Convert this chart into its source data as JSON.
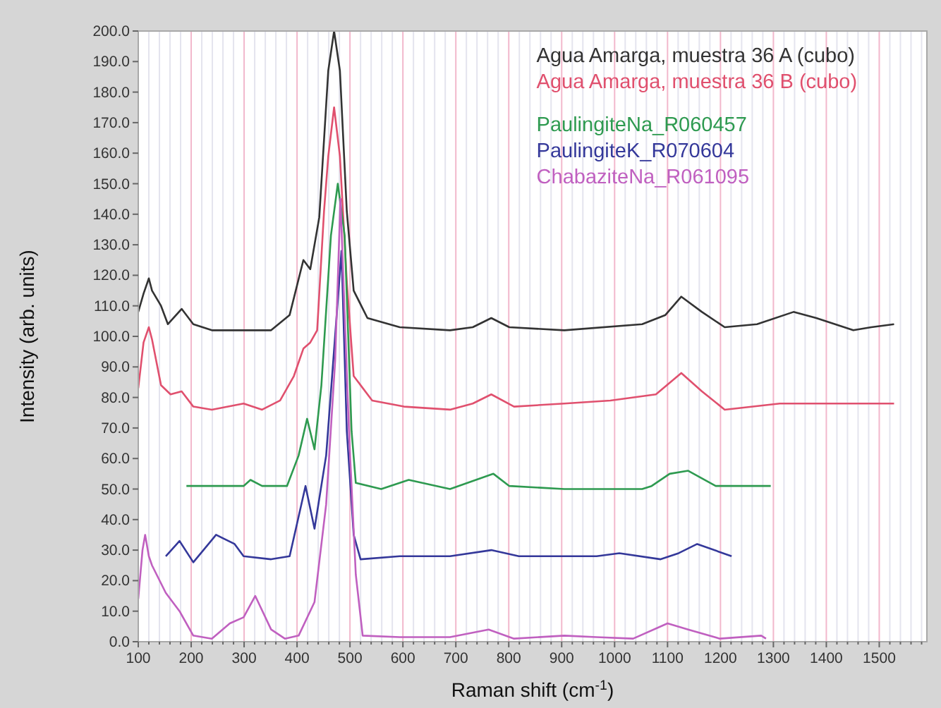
{
  "chart_data": {
    "type": "line",
    "xlabel": "Raman shift (cm$^{-1}$)",
    "ylabel": "Intensity (arb. units)",
    "xlim": [
      100,
      1590
    ],
    "ylim": [
      0,
      200
    ],
    "xticks": [
      100,
      {
        "value": 120,
        "label": null
      },
      {
        "value": 140,
        "label": null
      },
      {
        "value": 160,
        "label": null
      },
      {
        "value": 180,
        "label": null
      },
      200,
      {
        "value": 220,
        "label": null
      },
      {
        "value": 240,
        "label": null
      },
      {
        "value": 260,
        "label": null
      },
      {
        "value": 280,
        "label": null
      },
      300,
      {
        "value": 320,
        "label": null
      },
      {
        "value": 340,
        "label": null
      },
      {
        "value": 360,
        "label": null
      },
      {
        "value": 380,
        "label": null
      },
      400,
      {
        "value": 420,
        "label": null
      },
      {
        "value": 440,
        "label": null
      },
      {
        "value": 460,
        "label": null
      },
      {
        "value": 480,
        "label": null
      },
      500,
      {
        "value": 520,
        "label": null
      },
      {
        "value": 540,
        "label": null
      },
      {
        "value": 560,
        "label": null
      },
      {
        "value": 580,
        "label": null
      },
      600,
      {
        "value": 620,
        "label": null
      },
      {
        "value": 640,
        "label": null
      },
      {
        "value": 660,
        "label": null
      },
      {
        "value": 680,
        "label": null
      },
      700,
      {
        "value": 720,
        "label": null
      },
      {
        "value": 740,
        "label": null
      },
      {
        "value": 760,
        "label": null
      },
      {
        "value": 780,
        "label": null
      },
      800,
      {
        "value": 820,
        "label": null
      },
      {
        "value": 840,
        "label": null
      },
      {
        "value": 860,
        "label": null
      },
      {
        "value": 880,
        "label": null
      },
      900,
      {
        "value": 920,
        "label": null
      },
      {
        "value": 940,
        "label": null
      },
      {
        "value": 960,
        "label": null
      },
      {
        "value": 980,
        "label": null
      },
      1000,
      {
        "value": 1020,
        "label": null
      },
      {
        "value": 1040,
        "label": null
      },
      {
        "value": 1060,
        "label": null
      },
      {
        "value": 1080,
        "label": null
      },
      1100,
      {
        "value": 1120,
        "label": null
      },
      {
        "value": 1140,
        "label": null
      },
      {
        "value": 1160,
        "label": null
      },
      {
        "value": 1180,
        "label": null
      },
      1200,
      {
        "value": 1220,
        "label": null
      },
      {
        "value": 1240,
        "label": null
      },
      {
        "value": 1260,
        "label": null
      },
      {
        "value": 1280,
        "label": null
      },
      1300,
      {
        "value": 1320,
        "label": null
      },
      {
        "value": 1340,
        "label": null
      },
      {
        "value": 1360,
        "label": null
      },
      {
        "value": 1380,
        "label": null
      },
      1400,
      {
        "value": 1420,
        "label": null
      },
      {
        "value": 1440,
        "label": null
      },
      {
        "value": 1460,
        "label": null
      },
      {
        "value": 1480,
        "label": null
      },
      1500,
      {
        "value": 1520,
        "label": null
      },
      {
        "value": 1540,
        "label": null
      },
      {
        "value": 1560,
        "label": null
      },
      {
        "value": 1580,
        "label": null
      }
    ],
    "yticks": [
      {
        "value": 0,
        "label": "0.0"
      },
      {
        "value": 10,
        "label": "10.0"
      },
      {
        "value": 20,
        "label": "20.0"
      },
      {
        "value": 30,
        "label": "30.0"
      },
      {
        "value": 40,
        "label": "40.0"
      },
      {
        "value": 50,
        "label": "50.0"
      },
      {
        "value": 60,
        "label": "60.0"
      },
      {
        "value": 70,
        "label": "70.0"
      },
      {
        "value": 80,
        "label": "80.0"
      },
      {
        "value": 90,
        "label": "90.0"
      },
      {
        "value": 100,
        "label": "100.0"
      },
      {
        "value": 110,
        "label": "110.0"
      },
      {
        "value": 120,
        "label": "120.0"
      },
      {
        "value": 130,
        "label": "130.0"
      },
      {
        "value": 140,
        "label": "140.0"
      },
      {
        "value": 150,
        "label": "150.0"
      },
      {
        "value": 160,
        "label": "160.0"
      },
      {
        "value": 170,
        "label": "170.0"
      },
      {
        "value": 180,
        "label": "180.0"
      },
      {
        "value": 190,
        "label": "190.0"
      },
      {
        "value": 200,
        "label": "200.0"
      }
    ],
    "grid": "x",
    "legend": "top right",
    "marker": "none",
    "line_style": "solid",
    "series": [
      {
        "name": "Agua Amarga, muestra 36 A (cubo)",
        "color": "#333333",
        "x": [
          100,
          110,
          120,
          126,
          143,
          156,
          182,
          204,
          239,
          299,
          351,
          386,
          412,
          425,
          442,
          459,
          470,
          481,
          494,
          507,
          533,
          594,
          689,
          732,
          767,
          801,
          905,
          1052,
          1096,
          1126,
          1165,
          1208,
          1269,
          1338,
          1381,
          1451,
          1485,
          1528
        ],
        "values": [
          108,
          114,
          119,
          115,
          110,
          104,
          109,
          104,
          102,
          102,
          102,
          107,
          125,
          122,
          139,
          187,
          200,
          187,
          141,
          115,
          106,
          103,
          102,
          103,
          106,
          103,
          102,
          104,
          107,
          113,
          108,
          103,
          104,
          108,
          106,
          102,
          103,
          104
        ]
      },
      {
        "name": "Agua Amarga, muestra 36 B (cubo)",
        "color": "#e0506e",
        "x": [
          100,
          110,
          120,
          126,
          143,
          161,
          182,
          204,
          239,
          299,
          334,
          368,
          394,
          412,
          425,
          438,
          451,
          459,
          470,
          481,
          494,
          507,
          542,
          602,
          689,
          732,
          767,
          810,
          905,
          992,
          1078,
          1126,
          1165,
          1208,
          1312,
          1399,
          1528
        ],
        "values": [
          83,
          98,
          103,
          99,
          84,
          81,
          82,
          77,
          76,
          78,
          76,
          79,
          87,
          96,
          98,
          102,
          141,
          159,
          175,
          159,
          118,
          87,
          79,
          77,
          76,
          78,
          81,
          77,
          78,
          79,
          81,
          88,
          82,
          76,
          78,
          78,
          78
        ]
      },
      {
        "name": "PaulingiteNa_R060457",
        "color": "#2e9a50",
        "x": [
          191,
          299,
          312,
          334,
          381,
          403,
          419,
          433,
          446,
          464,
          477,
          490,
          503,
          511,
          559,
          611,
          689,
          771,
          801,
          905,
          1052,
          1070,
          1104,
          1139,
          1191,
          1295
        ],
        "values": [
          51,
          51,
          53,
          51,
          51,
          61,
          73,
          63,
          84,
          133,
          150,
          133,
          69,
          52,
          50,
          53,
          50,
          55,
          51,
          50,
          50,
          51,
          55,
          56,
          51,
          51
        ]
      },
      {
        "name": "PaulingiteK_R070604",
        "color": "#34389a",
        "x": [
          152,
          178,
          204,
          247,
          282,
          299,
          351,
          386,
          403,
          416,
          433,
          455,
          484,
          494,
          507,
          520,
          594,
          689,
          767,
          819,
          905,
          966,
          1009,
          1087,
          1121,
          1156,
          1221
        ],
        "values": [
          28,
          33,
          26,
          35,
          32,
          28,
          27,
          28,
          41,
          51,
          37,
          61,
          128,
          69,
          35,
          27,
          28,
          28,
          30,
          28,
          28,
          28,
          29,
          27,
          29,
          32,
          28
        ]
      },
      {
        "name": "ChabaziteNa_R061095",
        "color": "#c060c0",
        "x": [
          100,
          108,
          113,
          120,
          126,
          152,
          178,
          204,
          239,
          273,
          299,
          321,
          351,
          377,
          403,
          433,
          455,
          472,
          482,
          498,
          511,
          524,
          594,
          689,
          762,
          810,
          905,
          966,
          1035,
          1100,
          1139,
          1199,
          1277,
          1286
        ],
        "values": [
          14,
          30,
          35,
          28,
          25,
          16,
          10,
          2,
          1,
          6,
          8,
          15,
          4,
          1,
          2,
          13,
          45,
          92,
          145,
          69,
          22,
          2,
          1.5,
          1.5,
          4,
          1,
          2,
          1.5,
          1,
          6,
          4,
          1,
          2,
          1
        ]
      }
    ]
  }
}
